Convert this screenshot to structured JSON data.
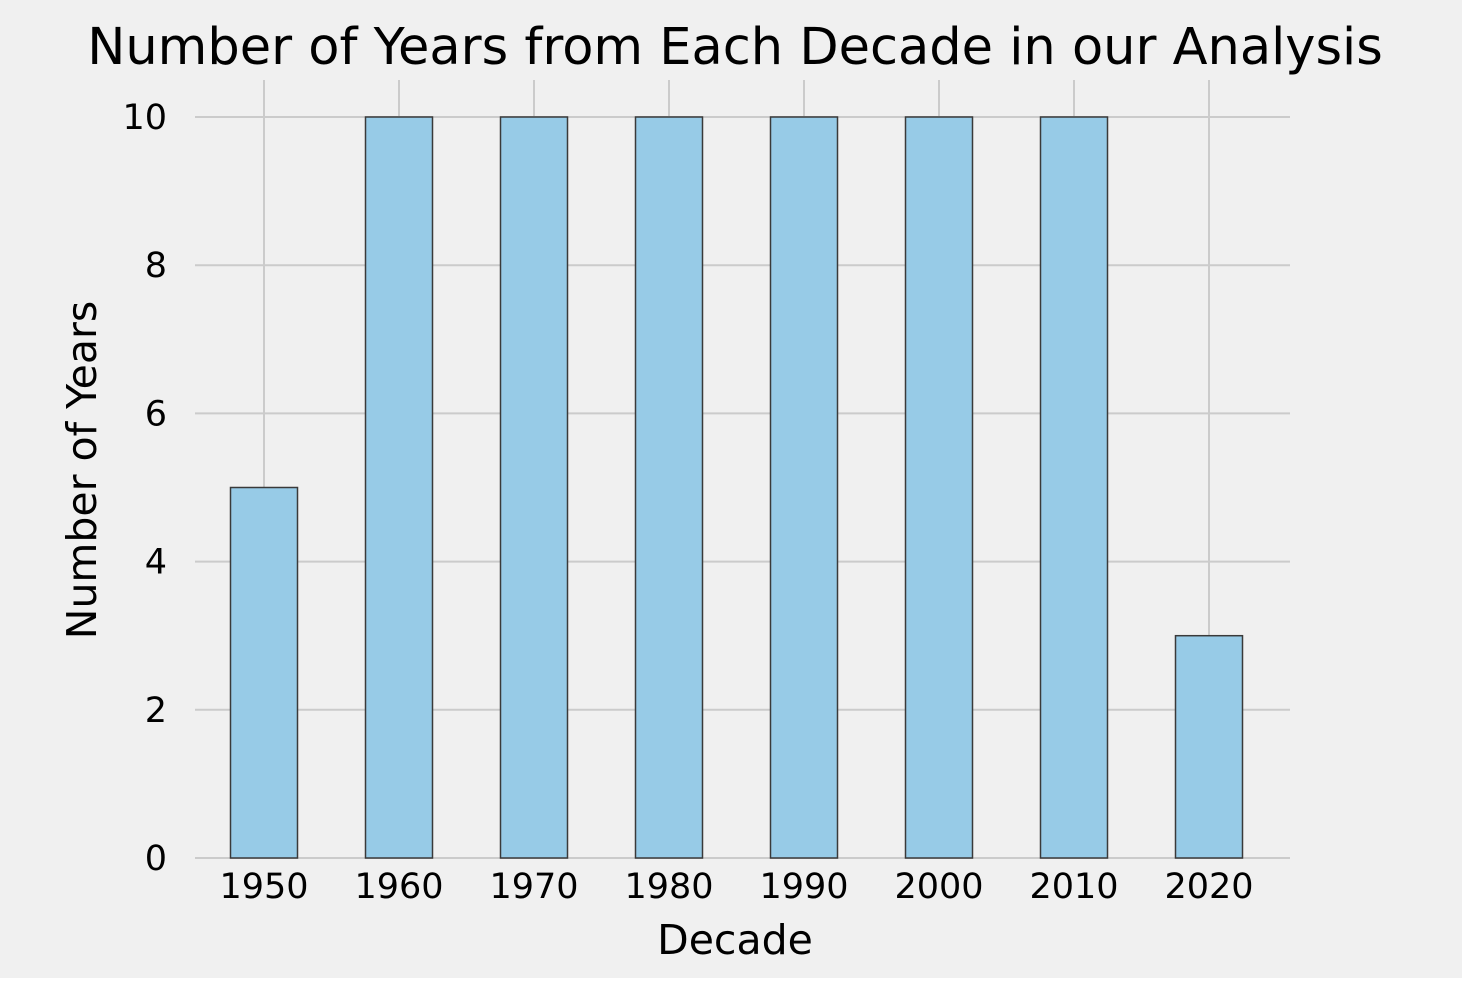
{
  "chart_data": {
    "type": "bar",
    "title": "Number of Years from Each Decade in our Analysis",
    "xlabel": "Decade",
    "ylabel": "Number of Years",
    "categories": [
      "1950",
      "1960",
      "1970",
      "1980",
      "1990",
      "2000",
      "2010",
      "2020"
    ],
    "values": [
      5,
      10,
      10,
      10,
      10,
      10,
      10,
      3
    ],
    "ylim": [
      0,
      10.5
    ],
    "yticks": [
      0,
      2,
      4,
      6,
      8,
      10
    ],
    "grid": true,
    "colors": {
      "bar": "#97cbe7",
      "bar_edge": "#3a3a3a",
      "background": "#f0f0f0",
      "grid": "#cbcbcb"
    }
  }
}
